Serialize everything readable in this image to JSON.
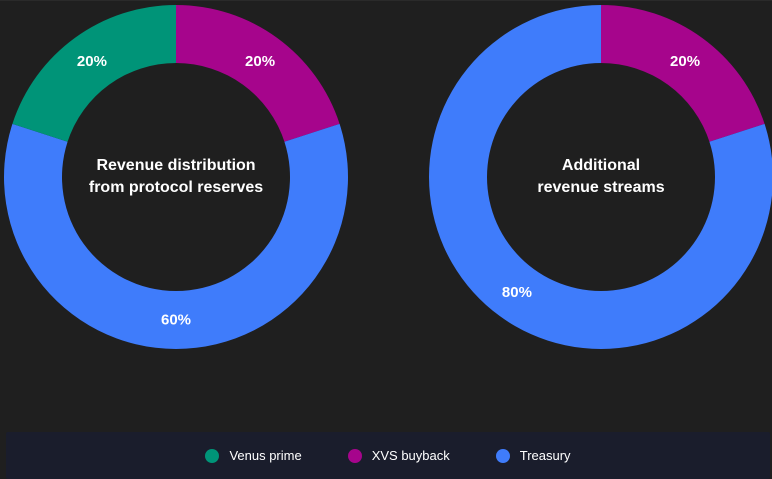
{
  "chart_data": [
    {
      "type": "pie",
      "title": "Revenue distribution from protocol reserves",
      "title_lines": [
        "Revenue distribution",
        "from protocol reserves"
      ],
      "slices": [
        {
          "name": "XVS buyback",
          "value": 20,
          "label": "20%",
          "color": "#a6058c"
        },
        {
          "name": "Treasury",
          "value": 60,
          "label": "60%",
          "color": "#3f7cfb"
        },
        {
          "name": "Venus prime",
          "value": 20,
          "label": "20%",
          "color": "#009478"
        }
      ]
    },
    {
      "type": "pie",
      "title": "Additional revenue streams",
      "title_lines": [
        "Additional",
        "revenue streams"
      ],
      "slices": [
        {
          "name": "XVS buyback",
          "value": 20,
          "label": "20%",
          "color": "#a6058c"
        },
        {
          "name": "Treasury",
          "value": 80,
          "label": "80%",
          "color": "#3f7cfb"
        }
      ]
    }
  ],
  "legend": {
    "items": [
      {
        "name": "Venus prime",
        "color": "#009478"
      },
      {
        "name": "XVS buyback",
        "color": "#a6058c"
      },
      {
        "name": "Treasury",
        "color": "#3f7cfb"
      }
    ]
  }
}
